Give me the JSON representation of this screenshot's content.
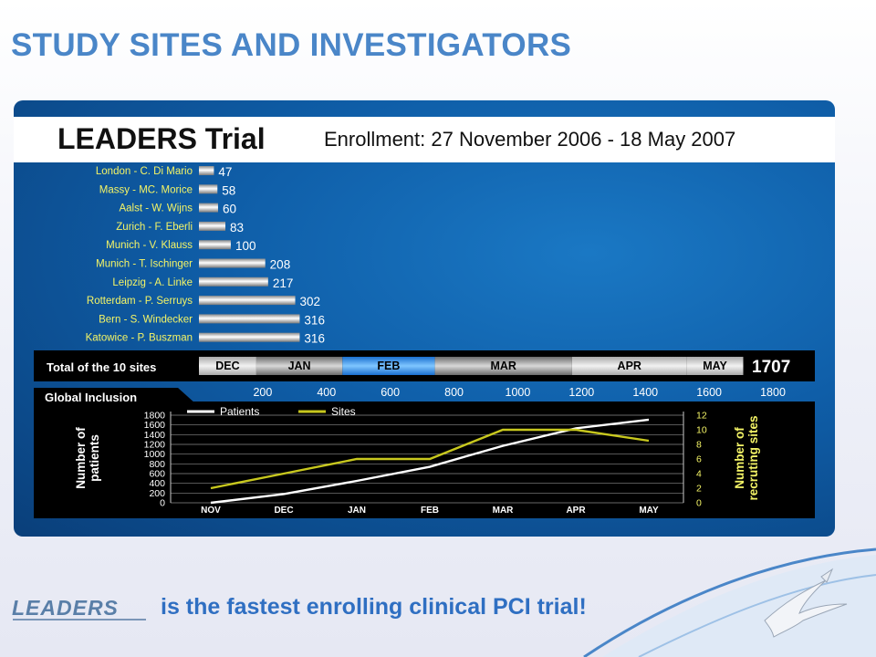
{
  "slide_title": "STUDY SITES AND INVESTIGATORS",
  "header": {
    "trial_name": "LEADERS Trial",
    "enrollment": "Enrollment: 27 November 2006 - 18 May 2007"
  },
  "total_row": {
    "label": "Total of the 10 sites",
    "total": "1707",
    "months": [
      "DEC",
      "JAN",
      "FEB",
      "MAR",
      "APR",
      "MAY"
    ]
  },
  "global_inclusion_label": "Global Inclusion",
  "footer": {
    "logo_text": "LEADERS",
    "tagline": "is the fastest enrolling clinical PCI  trial!"
  },
  "colors": {
    "title_blue": "#4a86c8",
    "patients_line": "#ffffff",
    "sites_line": "#c8c81e",
    "tagline_blue": "#2f6fc2"
  },
  "chart_data": [
    {
      "type": "bar",
      "orientation": "horizontal",
      "categories": [
        "London - C. Di Mario",
        "Massy - MC. Morice",
        "Aalst - W. Wijns",
        "Zurich - F. Eberli",
        "Munich - V. Klauss",
        "Munich - T. Ischinger",
        "Leipzig - A. Linke",
        "Rotterdam - P. Serruys",
        "Bern - S. Windecker",
        "Katowice - P. Buszman"
      ],
      "values": [
        47,
        58,
        60,
        83,
        100,
        208,
        217,
        302,
        316,
        316
      ],
      "x_ticks": [
        200,
        400,
        600,
        800,
        1000,
        1200,
        1400,
        1600,
        1800
      ],
      "xlim": [
        0,
        1800
      ],
      "cumulative_months": [
        {
          "label": "DEC",
          "end": 180
        },
        {
          "label": "JAN",
          "end": 450
        },
        {
          "label": "FEB",
          "end": 740
        },
        {
          "label": "MAR",
          "end": 1170
        },
        {
          "label": "APR",
          "end": 1530
        },
        {
          "label": "MAY",
          "end": 1707
        }
      ]
    },
    {
      "type": "line",
      "x": [
        "NOV",
        "DEC",
        "JAN",
        "FEB",
        "MAR",
        "APR",
        "MAY"
      ],
      "series": [
        {
          "name": "Patients",
          "axis": "left",
          "values": [
            0,
            180,
            450,
            740,
            1170,
            1530,
            1707
          ]
        },
        {
          "name": "Sites",
          "axis": "right",
          "values": [
            2,
            4,
            6,
            6,
            10,
            10,
            8.5
          ]
        }
      ],
      "ylabel": "Number of patients",
      "ylabel_right": "Number of recruting sites",
      "y_ticks": [
        0,
        200,
        400,
        600,
        800,
        1000,
        1200,
        1400,
        1600,
        1800
      ],
      "y_ticks_right": [
        0,
        2,
        4,
        6,
        8,
        10,
        12
      ],
      "ylim": [
        0,
        1800
      ],
      "ylim_right": [
        0,
        12
      ],
      "grid": true,
      "legend": "top"
    }
  ]
}
